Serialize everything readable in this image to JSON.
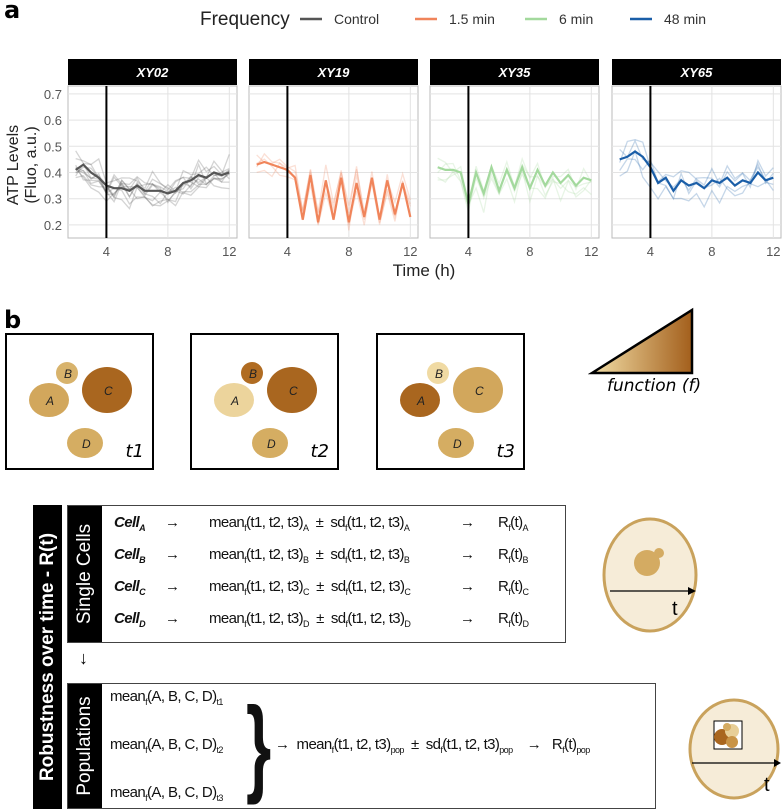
{
  "panel_a": {
    "letter": "a",
    "legend": {
      "title": "Frequency",
      "items": [
        {
          "label": "Control",
          "color": "#555555"
        },
        {
          "label": "1.5 min",
          "color": "#f0845a"
        },
        {
          "label": "6 min",
          "color": "#a3d99d"
        },
        {
          "label": "48 min",
          "color": "#1a5ea8"
        }
      ]
    },
    "ylabel_line1": "ATP Levels",
    "ylabel_line2": "(Fluo, a.u.)",
    "xlabel": "Time (h)"
  },
  "chart_data": {
    "type": "line",
    "title": "",
    "xlabel": "Time (h)",
    "ylabel": "ATP Levels (Fluo, a.u.)",
    "xlim": [
      1.5,
      12.5
    ],
    "ylim": [
      0.15,
      0.73
    ],
    "xticks": [
      4,
      8,
      12
    ],
    "yticks": [
      0.2,
      0.3,
      0.4,
      0.5,
      0.6,
      0.7
    ],
    "grid": true,
    "legend_placement": "top",
    "vline_x": 4,
    "x": [
      2,
      2.5,
      3,
      3.5,
      4,
      4.5,
      5,
      5.5,
      6,
      6.5,
      7,
      7.5,
      8,
      8.5,
      9,
      9.5,
      10,
      10.5,
      11,
      11.5,
      12
    ],
    "facets": [
      {
        "strip": "XY02",
        "series": "Control",
        "color": "#555555",
        "values": [
          0.41,
          0.43,
          0.4,
          0.38,
          0.35,
          0.34,
          0.34,
          0.33,
          0.35,
          0.33,
          0.33,
          0.33,
          0.32,
          0.33,
          0.36,
          0.37,
          0.39,
          0.38,
          0.4,
          0.39,
          0.4
        ]
      },
      {
        "strip": "XY19",
        "series": "1.5 min",
        "color": "#f0845a",
        "values": [
          0.43,
          0.44,
          0.43,
          0.42,
          0.41,
          0.38,
          0.22,
          0.39,
          0.21,
          0.37,
          0.22,
          0.38,
          0.21,
          0.36,
          0.23,
          0.38,
          0.22,
          0.37,
          0.24,
          0.36,
          0.23
        ]
      },
      {
        "strip": "XY35",
        "series": "6 min",
        "color": "#a3d99d",
        "values": [
          0.42,
          0.41,
          0.41,
          0.4,
          0.28,
          0.4,
          0.32,
          0.42,
          0.33,
          0.41,
          0.34,
          0.42,
          0.34,
          0.41,
          0.35,
          0.4,
          0.36,
          0.39,
          0.35,
          0.38,
          0.37
        ]
      },
      {
        "strip": "XY65",
        "series": "48 min",
        "color": "#1a5ea8",
        "values": [
          0.45,
          0.46,
          0.48,
          0.46,
          0.42,
          0.36,
          0.38,
          0.33,
          0.37,
          0.35,
          0.36,
          0.34,
          0.37,
          0.36,
          0.38,
          0.35,
          0.37,
          0.36,
          0.4,
          0.37,
          0.38
        ]
      }
    ]
  },
  "panel_b": {
    "letter": "b",
    "snapshots": [
      {
        "time": "t1",
        "cells": [
          {
            "id": "A",
            "color": "#d2a75c"
          },
          {
            "id": "B",
            "color": "#d8b36c"
          },
          {
            "id": "C",
            "color": "#a9661f"
          },
          {
            "id": "D",
            "color": "#d5ad62"
          }
        ]
      },
      {
        "time": "t2",
        "cells": [
          {
            "id": "A",
            "color": "#ecd49c"
          },
          {
            "id": "B",
            "color": "#b06c22"
          },
          {
            "id": "C",
            "color": "#a9661f"
          },
          {
            "id": "D",
            "color": "#d5ad62"
          }
        ]
      },
      {
        "time": "t3",
        "cells": [
          {
            "id": "A",
            "color": "#a9661f"
          },
          {
            "id": "B",
            "color": "#f0daa3"
          },
          {
            "id": "C",
            "color": "#d2a75c"
          },
          {
            "id": "D",
            "color": "#d5ad62"
          }
        ]
      }
    ],
    "gradient_label": "function (f)",
    "side_label": "Robustness over time - R(t)",
    "single_cells_label": "Single Cells",
    "populations_label": "Populations",
    "cell_rows": [
      {
        "cell": "Cell",
        "sub": "A"
      },
      {
        "cell": "Cell",
        "sub": "B"
      },
      {
        "cell": "Cell",
        "sub": "C"
      },
      {
        "cell": "Cell",
        "sub": "D"
      }
    ],
    "eq": {
      "arrow": "→",
      "mean": "mean",
      "sd": "sd",
      "f": "f",
      "times": "(t1, t2, t3)",
      "pm": "±",
      "r": "R",
      "rt": "(t)",
      "cells_args": "(A, B, C, D)",
      "pop": "pop",
      "down_arrow": "↓"
    },
    "pop_rows": [
      "t1",
      "t2",
      "t3"
    ],
    "axis_t": "t"
  }
}
